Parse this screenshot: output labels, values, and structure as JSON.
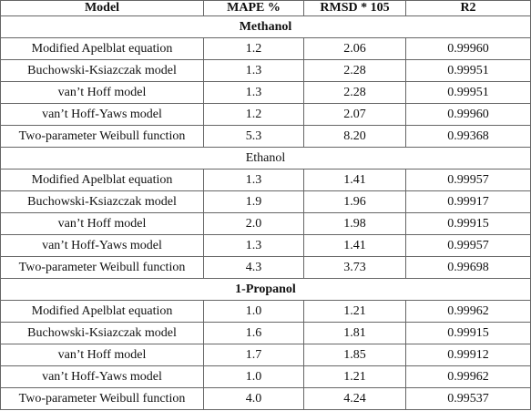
{
  "table": {
    "header": [
      "Model",
      "MAPE %",
      "RMSD * 105",
      "R2"
    ],
    "groups": [
      {
        "name": "Methanol",
        "rows": [
          [
            "Modified Apelblat equation",
            "1.2",
            "2.06",
            "0.99960"
          ],
          [
            "Buchowski-Ksiazczak model",
            "1.3",
            "2.28",
            "0.99951"
          ],
          [
            "van’t Hoff model",
            "1.3",
            "2.28",
            "0.99951"
          ],
          [
            "van’t Hoff-Yaws model",
            "1.2",
            "2.07",
            "0.99960"
          ],
          [
            "Two-parameter Weibull function",
            "5.3",
            "8.20",
            "0.99368"
          ]
        ]
      },
      {
        "name": "Ethanol",
        "rows": [
          [
            "Modified Apelblat equation",
            "1.3",
            "1.41",
            "0.99957"
          ],
          [
            "Buchowski-Ksiazczak model",
            "1.9",
            "1.96",
            "0.99917"
          ],
          [
            "van’t Hoff model",
            "2.0",
            "1.98",
            "0.99915"
          ],
          [
            "van’t Hoff-Yaws model",
            "1.3",
            "1.41",
            "0.99957"
          ],
          [
            "Two-parameter Weibull function",
            "4.3",
            "3.73",
            "0.99698"
          ]
        ]
      },
      {
        "name": "1-Propanol",
        "rows": [
          [
            "Modified Apelblat equation",
            "1.0",
            "1.21",
            "0.99962"
          ],
          [
            "Buchowski-Ksiazczak model",
            "1.6",
            "1.81",
            "0.99915"
          ],
          [
            "van’t Hoff model",
            "1.7",
            "1.85",
            "0.99912"
          ],
          [
            "van’t Hoff-Yaws model",
            "1.0",
            "1.21",
            "0.99962"
          ],
          [
            "Two-parameter Weibull function",
            "4.0",
            "4.24",
            "0.99537"
          ]
        ]
      }
    ]
  }
}
